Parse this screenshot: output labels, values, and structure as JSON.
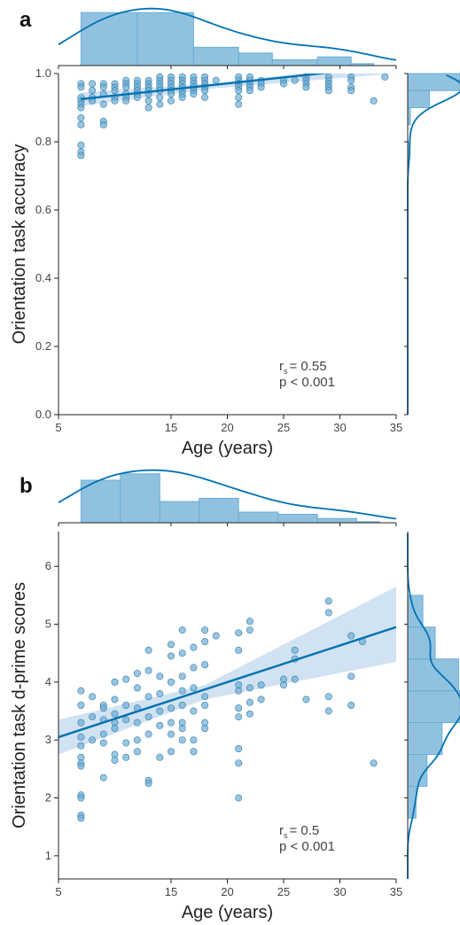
{
  "colors": {
    "accent": "#0072b2",
    "fill": "#6baed6",
    "band": "#c6dbef",
    "axis": "#222222"
  },
  "chart_data": [
    {
      "panel": "a",
      "type": "scatter",
      "xlabel": "Age (years)",
      "ylabel": "Orientation task accuracy",
      "xlim": [
        5,
        35
      ],
      "ylim": [
        0.0,
        1.0
      ],
      "xticks": [
        5,
        15,
        20,
        25,
        30,
        35
      ],
      "yticks": [
        0.0,
        0.2,
        0.4,
        0.6,
        0.8,
        1.0
      ],
      "stat_r": "= 0.55",
      "stat_r_prefix": "r",
      "stat_r_sub": "s",
      "stat_p": "p < 0.001",
      "regression": {
        "x": [
          7,
          31
        ],
        "y": [
          0.925,
          1.01
        ]
      },
      "ci": {
        "x": [
          7,
          19,
          35
        ],
        "lower": [
          0.905,
          0.957,
          1.0
        ],
        "upper": [
          0.945,
          0.972,
          1.03
        ]
      },
      "points": [
        [
          7,
          0.97
        ],
        [
          7,
          0.96
        ],
        [
          7,
          0.93
        ],
        [
          7,
          0.92
        ],
        [
          7,
          0.91
        ],
        [
          7,
          0.9
        ],
        [
          7,
          0.87
        ],
        [
          7,
          0.85
        ],
        [
          7,
          0.79
        ],
        [
          7,
          0.77
        ],
        [
          7,
          0.76
        ],
        [
          8,
          0.97
        ],
        [
          8,
          0.95
        ],
        [
          8,
          0.93
        ],
        [
          8,
          0.92
        ],
        [
          9,
          0.97
        ],
        [
          9,
          0.96
        ],
        [
          9,
          0.94
        ],
        [
          9,
          0.91
        ],
        [
          9,
          0.86
        ],
        [
          9,
          0.85
        ],
        [
          10,
          0.97
        ],
        [
          10,
          0.96
        ],
        [
          10,
          0.95
        ],
        [
          10,
          0.93
        ],
        [
          10,
          0.92
        ],
        [
          11,
          0.98
        ],
        [
          11,
          0.97
        ],
        [
          11,
          0.96
        ],
        [
          11,
          0.94
        ],
        [
          11,
          0.93
        ],
        [
          11,
          0.92
        ],
        [
          12,
          0.98
        ],
        [
          12,
          0.97
        ],
        [
          12,
          0.96
        ],
        [
          12,
          0.95
        ],
        [
          12,
          0.94
        ],
        [
          12,
          0.93
        ],
        [
          13,
          0.98
        ],
        [
          13,
          0.97
        ],
        [
          13,
          0.96
        ],
        [
          13,
          0.95
        ],
        [
          13,
          0.94
        ],
        [
          13,
          0.92
        ],
        [
          13,
          0.9
        ],
        [
          14,
          0.99
        ],
        [
          14,
          0.98
        ],
        [
          14,
          0.97
        ],
        [
          14,
          0.96
        ],
        [
          14,
          0.95
        ],
        [
          14,
          0.93
        ],
        [
          14,
          0.91
        ],
        [
          15,
          0.99
        ],
        [
          15,
          0.98
        ],
        [
          15,
          0.97
        ],
        [
          15,
          0.96
        ],
        [
          15,
          0.95
        ],
        [
          15,
          0.94
        ],
        [
          15,
          0.92
        ],
        [
          16,
          0.99
        ],
        [
          16,
          0.98
        ],
        [
          16,
          0.97
        ],
        [
          16,
          0.96
        ],
        [
          16,
          0.95
        ],
        [
          16,
          0.94
        ],
        [
          16,
          0.93
        ],
        [
          17,
          0.99
        ],
        [
          17,
          0.98
        ],
        [
          17,
          0.97
        ],
        [
          17,
          0.96
        ],
        [
          17,
          0.95
        ],
        [
          17,
          0.94
        ],
        [
          18,
          0.99
        ],
        [
          18,
          0.98
        ],
        [
          18,
          0.97
        ],
        [
          18,
          0.96
        ],
        [
          18,
          0.95
        ],
        [
          18,
          0.93
        ],
        [
          19,
          0.98
        ],
        [
          21,
          0.99
        ],
        [
          21,
          0.98
        ],
        [
          21,
          0.97
        ],
        [
          21,
          0.96
        ],
        [
          21,
          0.95
        ],
        [
          21,
          0.93
        ],
        [
          21,
          0.91
        ],
        [
          22,
          0.99
        ],
        [
          22,
          0.98
        ],
        [
          22,
          0.97
        ],
        [
          22,
          0.96
        ],
        [
          22,
          0.95
        ],
        [
          23,
          0.98
        ],
        [
          23,
          0.97
        ],
        [
          23,
          0.96
        ],
        [
          25,
          0.98
        ],
        [
          25,
          0.97
        ],
        [
          26,
          0.98
        ],
        [
          27,
          0.99
        ],
        [
          27,
          0.98
        ],
        [
          27,
          0.97
        ],
        [
          27,
          0.96
        ],
        [
          29,
          0.99
        ],
        [
          29,
          0.98
        ],
        [
          29,
          0.97
        ],
        [
          29,
          0.96
        ],
        [
          29,
          0.95
        ],
        [
          31,
          0.99
        ],
        [
          31,
          0.98
        ],
        [
          31,
          0.96
        ],
        [
          31,
          0.95
        ],
        [
          33,
          0.92
        ],
        [
          34,
          0.99
        ]
      ],
      "hist_top": [
        {
          "x0": 7,
          "x1": 12,
          "count": 55
        },
        {
          "x0": 12,
          "x1": 17,
          "count": 55
        },
        {
          "x0": 17,
          "x1": 21,
          "count": 19
        },
        {
          "x0": 21,
          "x1": 24,
          "count": 13
        },
        {
          "x0": 24,
          "x1": 28,
          "count": 6
        },
        {
          "x0": 28,
          "x1": 31,
          "count": 9
        },
        {
          "x0": 31,
          "x1": 33,
          "count": 2
        }
      ],
      "hist_right": [
        {
          "y0": 0.95,
          "y1": 1.0,
          "count": 120
        },
        {
          "y0": 0.9,
          "y1": 0.95,
          "count": 50
        },
        {
          "y0": 0.85,
          "y1": 0.9,
          "count": 6
        },
        {
          "y0": 0.75,
          "y1": 0.8,
          "count": 4
        }
      ]
    },
    {
      "panel": "b",
      "type": "scatter",
      "xlabel": "Age (years)",
      "ylabel": "Orientation task d-prime scores",
      "xlim": [
        5,
        35
      ],
      "ylim": [
        0.6,
        6.6
      ],
      "xticks": [
        5,
        15,
        20,
        25,
        30,
        35
      ],
      "yticks": [
        1,
        2,
        3,
        4,
        5,
        6
      ],
      "stat_r": "= 0.5",
      "stat_r_prefix": "r",
      "stat_r_sub": "s",
      "stat_p": "p < 0.001",
      "regression": {
        "x": [
          5,
          35
        ],
        "y": [
          3.05,
          4.95
        ]
      },
      "ci": {
        "x": [
          5,
          18,
          35
        ],
        "lower": [
          2.75,
          3.7,
          4.35
        ],
        "upper": [
          3.35,
          3.95,
          5.65
        ]
      },
      "points": [
        [
          7,
          3.85
        ],
        [
          7,
          3.6
        ],
        [
          7,
          3.3
        ],
        [
          7,
          3.05
        ],
        [
          7,
          2.9
        ],
        [
          7,
          2.7
        ],
        [
          7,
          2.6
        ],
        [
          7,
          2.55
        ],
        [
          7,
          2.05
        ],
        [
          7,
          2.0
        ],
        [
          7,
          1.7
        ],
        [
          7,
          1.65
        ],
        [
          8,
          3.75
        ],
        [
          8,
          3.4
        ],
        [
          8,
          3.0
        ],
        [
          9,
          3.6
        ],
        [
          9,
          3.55
        ],
        [
          9,
          3.35
        ],
        [
          9,
          3.1
        ],
        [
          9,
          2.95
        ],
        [
          9,
          2.35
        ],
        [
          10,
          4.0
        ],
        [
          10,
          3.7
        ],
        [
          10,
          3.45
        ],
        [
          10,
          3.3
        ],
        [
          10,
          3.2
        ],
        [
          10,
          2.75
        ],
        [
          10,
          2.65
        ],
        [
          11,
          4.05
        ],
        [
          11,
          3.6
        ],
        [
          11,
          3.35
        ],
        [
          11,
          2.95
        ],
        [
          11,
          2.7
        ],
        [
          12,
          4.15
        ],
        [
          12,
          3.9
        ],
        [
          12,
          3.55
        ],
        [
          12,
          3.3
        ],
        [
          12,
          3.0
        ],
        [
          12,
          2.8
        ],
        [
          13,
          4.55
        ],
        [
          13,
          4.2
        ],
        [
          13,
          3.75
        ],
        [
          13,
          3.4
        ],
        [
          13,
          3.1
        ],
        [
          13,
          2.3
        ],
        [
          13,
          2.25
        ],
        [
          14,
          4.1
        ],
        [
          14,
          3.8
        ],
        [
          14,
          3.5
        ],
        [
          14,
          3.25
        ],
        [
          14,
          2.7
        ],
        [
          15,
          4.65
        ],
        [
          15,
          4.45
        ],
        [
          15,
          4.0
        ],
        [
          15,
          3.55
        ],
        [
          15,
          3.3
        ],
        [
          15,
          3.1
        ],
        [
          15,
          2.8
        ],
        [
          16,
          4.9
        ],
        [
          16,
          4.5
        ],
        [
          16,
          4.1
        ],
        [
          16,
          3.85
        ],
        [
          16,
          3.6
        ],
        [
          16,
          3.3
        ],
        [
          16,
          3.2
        ],
        [
          16,
          3.0
        ],
        [
          17,
          4.6
        ],
        [
          17,
          4.25
        ],
        [
          17,
          3.9
        ],
        [
          17,
          3.5
        ],
        [
          17,
          3.0
        ],
        [
          17,
          2.8
        ],
        [
          18,
          4.9
        ],
        [
          18,
          4.7
        ],
        [
          18,
          4.3
        ],
        [
          18,
          3.75
        ],
        [
          18,
          3.6
        ],
        [
          18,
          3.3
        ],
        [
          18,
          3.2
        ],
        [
          19,
          4.8
        ],
        [
          21,
          4.85
        ],
        [
          21,
          4.55
        ],
        [
          21,
          3.95
        ],
        [
          21,
          3.85
        ],
        [
          21,
          3.55
        ],
        [
          21,
          3.4
        ],
        [
          21,
          2.85
        ],
        [
          21,
          2.6
        ],
        [
          21,
          2.0
        ],
        [
          22,
          5.05
        ],
        [
          22,
          4.9
        ],
        [
          22,
          3.9
        ],
        [
          22,
          3.65
        ],
        [
          22,
          3.45
        ],
        [
          23,
          3.95
        ],
        [
          23,
          3.7
        ],
        [
          25,
          4.05
        ],
        [
          25,
          3.95
        ],
        [
          26,
          4.55
        ],
        [
          26,
          4.4
        ],
        [
          26,
          4.05
        ],
        [
          27,
          3.7
        ],
        [
          29,
          5.4
        ],
        [
          29,
          5.2
        ],
        [
          29,
          3.75
        ],
        [
          29,
          3.5
        ],
        [
          31,
          4.8
        ],
        [
          31,
          4.1
        ],
        [
          31,
          3.6
        ],
        [
          32,
          4.7
        ],
        [
          33,
          2.6
        ]
      ],
      "hist_top": [
        {
          "x0": 7,
          "x1": 10.5,
          "count": 40
        },
        {
          "x0": 10.5,
          "x1": 14,
          "count": 46
        },
        {
          "x0": 14,
          "x1": 17.5,
          "count": 20
        },
        {
          "x0": 17.5,
          "x1": 21,
          "count": 23
        },
        {
          "x0": 21,
          "x1": 24.5,
          "count": 10
        },
        {
          "x0": 24.5,
          "x1": 28,
          "count": 8
        },
        {
          "x0": 28,
          "x1": 31.5,
          "count": 4
        },
        {
          "x0": 31.5,
          "x1": 33.5,
          "count": 1
        }
      ],
      "hist_right": [
        {
          "y0": 4.95,
          "y1": 5.5,
          "count": 11
        },
        {
          "y0": 4.4,
          "y1": 4.95,
          "count": 20
        },
        {
          "y0": 3.85,
          "y1": 4.4,
          "count": 37
        },
        {
          "y0": 3.3,
          "y1": 3.85,
          "count": 38
        },
        {
          "y0": 2.75,
          "y1": 3.3,
          "count": 25
        },
        {
          "y0": 2.2,
          "y1": 2.75,
          "count": 14
        },
        {
          "y0": 1.65,
          "y1": 2.2,
          "count": 6
        }
      ]
    }
  ]
}
